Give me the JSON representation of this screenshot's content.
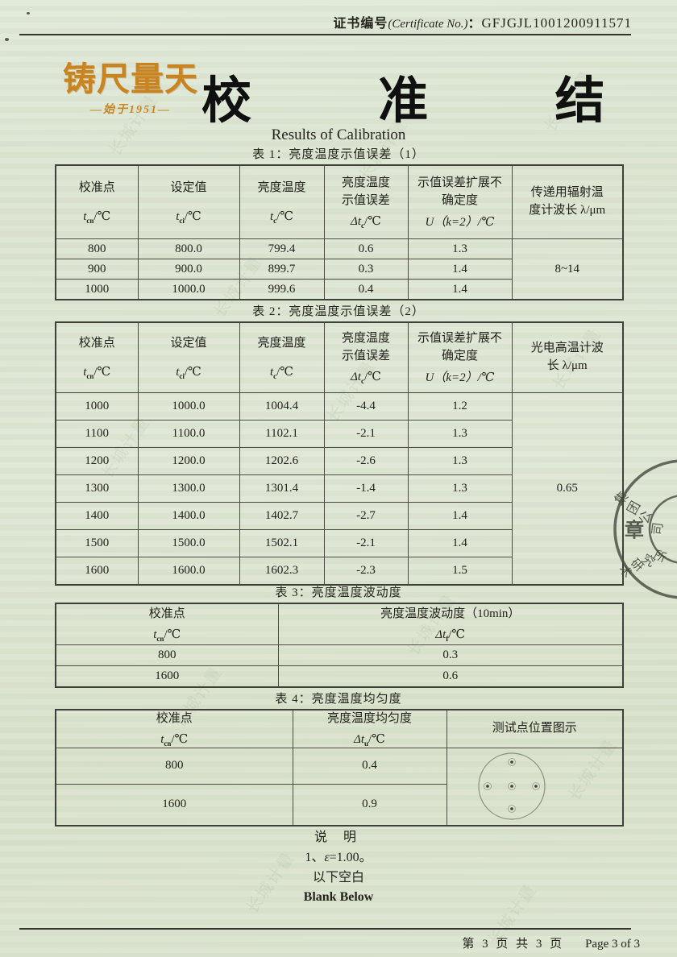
{
  "header": {
    "cert_label": "证书编号",
    "cert_en": "(Certificate No.)",
    "colon": "：",
    "cert_no": "GFJGJL1001200911571"
  },
  "logo": {
    "motto": "铸尺量天",
    "since": "—始于1951—",
    "color": "#c9831f"
  },
  "title": {
    "cn": "校 准 结 果",
    "en": "Results of Calibration"
  },
  "table1": {
    "caption": "表 1：亮度温度示值误差（1）",
    "cols": [
      {
        "label": "校准点",
        "sym": "t",
        "sub": "cn",
        "unit": "/℃"
      },
      {
        "label": "设定值",
        "sym": "t",
        "sub": "ci",
        "unit": "/℃"
      },
      {
        "label": "亮度温度",
        "sym": "t",
        "sub": "c",
        "unit": "/℃"
      },
      {
        "label": "亮度温度\n示值误差",
        "sym": "Δt",
        "sub": "c",
        "unit": "/℃"
      },
      {
        "label": "示值误差扩展不\n确定度",
        "uexpr": "U（k=2）/℃"
      },
      {
        "label": "传递用辐射温\n度计波长 λ/μm"
      }
    ],
    "rows": [
      [
        "800",
        "800.0",
        "799.4",
        "0.6",
        "1.3",
        {
          "t": "8~14",
          "rs": 3
        }
      ],
      [
        "900",
        "900.0",
        "899.7",
        "0.3",
        "1.4"
      ],
      [
        "1000",
        "1000.0",
        "999.6",
        "0.4",
        "1.4"
      ]
    ]
  },
  "table2": {
    "caption": "表 2：亮度温度示值误差（2）",
    "cols": [
      {
        "label": "校准点",
        "sym": "t",
        "sub": "cn",
        "unit": "/℃"
      },
      {
        "label": "设定值",
        "sym": "t",
        "sub": "ci",
        "unit": "/℃"
      },
      {
        "label": "亮度温度",
        "sym": "t",
        "sub": "c",
        "unit": "/℃"
      },
      {
        "label": "亮度温度\n示值误差",
        "sym": "Δt",
        "sub": "c",
        "unit": "/℃"
      },
      {
        "label": "示值误差扩展不\n确定度",
        "uexpr": "U（k=2）/℃"
      },
      {
        "label": "光电高温计波\n长 λ/μm"
      }
    ],
    "rows": [
      [
        "1000",
        "1000.0",
        "1004.4",
        "-4.4",
        "1.2",
        {
          "t": "0.65",
          "rs": 7
        }
      ],
      [
        "1100",
        "1100.0",
        "1102.1",
        "-2.1",
        "1.3"
      ],
      [
        "1200",
        "1200.0",
        "1202.6",
        "-2.6",
        "1.3"
      ],
      [
        "1300",
        "1300.0",
        "1301.4",
        "-1.4",
        "1.3"
      ],
      [
        "1400",
        "1400.0",
        "1402.7",
        "-2.7",
        "1.4"
      ],
      [
        "1500",
        "1500.0",
        "1502.1",
        "-2.1",
        "1.4"
      ],
      [
        "1600",
        "1600.0",
        "1602.3",
        "-2.3",
        "1.5"
      ]
    ]
  },
  "table3": {
    "caption": "表 3：亮度温度波动度",
    "col1": {
      "label": "校准点",
      "sym": "t",
      "sub": "cn",
      "unit": "/℃"
    },
    "col2": {
      "label": "亮度温度波动度（10min）",
      "sym": "Δt",
      "sub": "f",
      "unit": "/℃"
    },
    "rows": [
      [
        "800",
        "0.3"
      ],
      [
        "1600",
        "0.6"
      ]
    ]
  },
  "table4": {
    "caption": "表 4：亮度温度均匀度",
    "col1": {
      "label": "校准点",
      "sym": "t",
      "sub": "cn",
      "unit": "/℃"
    },
    "col2": {
      "label": "亮度温度均匀度",
      "sym": "Δt",
      "sub": "u",
      "unit": "/℃"
    },
    "col3": {
      "label": "测试点位置图示"
    },
    "rows": [
      [
        "800",
        "0.4",
        {
          "t": "",
          "rs": 2,
          "cls": "diagram-cell"
        }
      ],
      [
        "1600",
        "0.9"
      ]
    ]
  },
  "notes": {
    "heading": "说  明",
    "line1_pre": "1、",
    "line1_eps": "ε",
    "line1_rest": "=1.00。",
    "line2": "以下空白",
    "line3": "Blank Below"
  },
  "stamp": {
    "top": [
      "集",
      "团",
      "公",
      "司"
    ],
    "center": "章",
    "bottom": [
      "术",
      "研",
      "究",
      "所"
    ],
    "color": "#3e4338"
  },
  "footer": {
    "cn": "第 3 页 共 3 页",
    "en": "Page 3 of 3"
  },
  "watermark": {
    "text": "长城计量"
  }
}
